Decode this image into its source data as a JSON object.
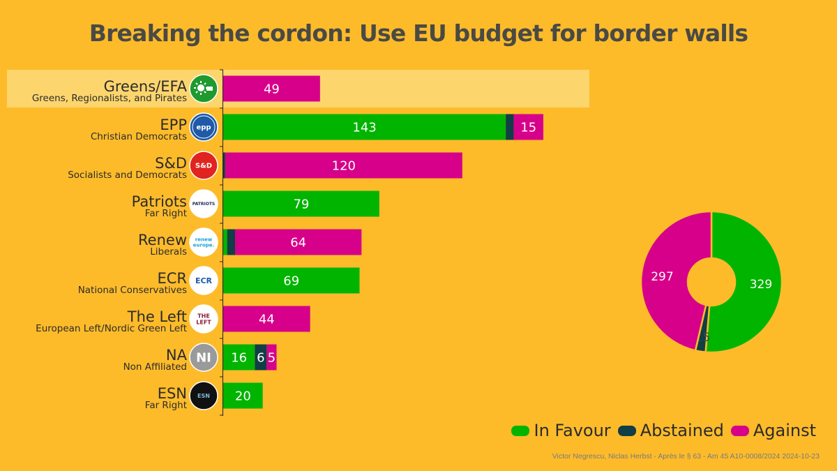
{
  "title": "Breaking the cordon: Use EU budget for border walls",
  "source": "Victor Negrescu, Niclas Herbst - Après le § 63 - Am 45 A10-0008/2024 2024-10-23",
  "colors": {
    "background": "#FDBB2A",
    "in_favour": "#00B400",
    "abstained": "#123E45",
    "against": "#D6008A",
    "highlight": "#FDD56D"
  },
  "legend": {
    "in_favour": "In Favour",
    "abstained": "Abstained",
    "against": "Against"
  },
  "chart_data": [
    {
      "type": "bar",
      "orientation": "horizontal",
      "stacked": true,
      "title": "Breaking the cordon: Use EU budget for border walls",
      "categories": [
        "Greens/EFA",
        "EPP",
        "S&D",
        "Patriots",
        "Renew",
        "ECR",
        "The Left",
        "NA",
        "ESN"
      ],
      "subtitles": [
        "Greens, Regionalists, and Pirates",
        "Christian Democrats",
        "Socialists and Democrats",
        "Far Right",
        "Liberals",
        "National Conservatives",
        "European Left/Nordic Green Left",
        "Non Affiliated",
        "Far Right"
      ],
      "logos": [
        "greens-efa-logo",
        "epp-logo",
        "s-and-d-logo",
        "patriots-logo",
        "renew-europe-logo",
        "ecr-group-logo",
        "the-left-logo",
        "ni-logo",
        "esn-logo"
      ],
      "logo_text": [
        "",
        "epp",
        "S&D",
        "PATRIOTS",
        "renew europe.",
        "ECR",
        "THE LEFT",
        "NI",
        "ESN"
      ],
      "highlighted": "Greens/EFA",
      "series": [
        {
          "name": "In Favour",
          "values": [
            0,
            143,
            0,
            79,
            2,
            69,
            0,
            16,
            20
          ]
        },
        {
          "name": "Abstained",
          "values": [
            0,
            4,
            1,
            0,
            4,
            0,
            0,
            6,
            0
          ]
        },
        {
          "name": "Against",
          "values": [
            49,
            15,
            120,
            0,
            64,
            0,
            44,
            5,
            0
          ]
        }
      ],
      "xlim": [
        0,
        190
      ]
    },
    {
      "type": "pie",
      "donut": true,
      "labels": [
        "In Favour",
        "Abstained",
        "Against"
      ],
      "values": [
        329,
        15,
        297
      ]
    }
  ]
}
